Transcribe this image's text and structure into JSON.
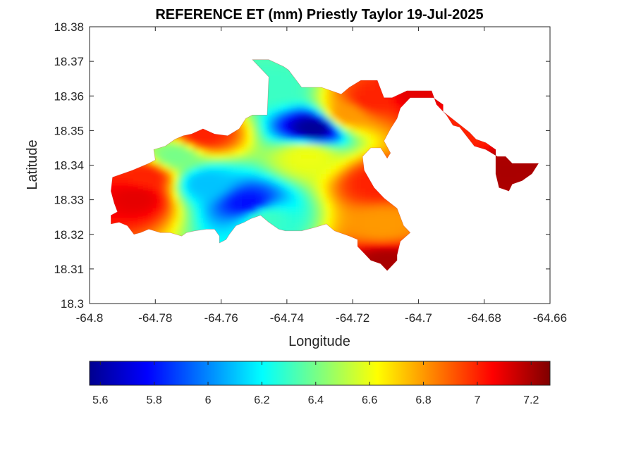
{
  "chart_data": {
    "type": "heatmap",
    "title": "REFERENCE ET (mm) Priestly Taylor 19-Jul-2025",
    "xlabel": "Longitude",
    "ylabel": "Latitude",
    "xlim": [
      -64.8,
      -64.66
    ],
    "ylim": [
      18.3,
      18.38
    ],
    "x_ticks": [
      -64.8,
      -64.78,
      -64.76,
      -64.74,
      -64.72,
      -64.7,
      -64.68,
      -64.66
    ],
    "x_tick_labels": [
      "-64.8",
      "-64.78",
      "-64.76",
      "-64.74",
      "-64.72",
      "-64.7",
      "-64.68",
      "-64.66"
    ],
    "y_ticks": [
      18.3,
      18.31,
      18.32,
      18.33,
      18.34,
      18.35,
      18.36,
      18.37,
      18.38
    ],
    "y_tick_labels": [
      "18.3",
      "18.31",
      "18.32",
      "18.33",
      "18.34",
      "18.35",
      "18.36",
      "18.37",
      "18.38"
    ],
    "grid": false,
    "colormap": "jet",
    "colorbar": {
      "orientation": "horizontal",
      "placement": "below",
      "clim": [
        5.56,
        7.27
      ],
      "ticks": [
        5.6,
        5.8,
        6.0,
        6.2,
        6.4,
        6.6,
        6.8,
        7.0,
        7.2
      ],
      "tick_labels": [
        "5.6",
        "5.8",
        "6",
        "6.2",
        "6.4",
        "6.6",
        "6.8",
        "7",
        "7.2"
      ]
    },
    "mask_outline": [
      [
        -64.793,
        18.3365
      ],
      [
        -64.787,
        18.3385
      ],
      [
        -64.782,
        18.3405
      ],
      [
        -64.78,
        18.3415
      ],
      [
        -64.7805,
        18.3445
      ],
      [
        -64.777,
        18.3455
      ],
      [
        -64.774,
        18.3475
      ],
      [
        -64.7715,
        18.3485
      ],
      [
        -64.769,
        18.349
      ],
      [
        -64.7655,
        18.3505
      ],
      [
        -64.762,
        18.349
      ],
      [
        -64.758,
        18.3485
      ],
      [
        -64.7545,
        18.3505
      ],
      [
        -64.7525,
        18.3535
      ],
      [
        -64.7505,
        18.3545
      ],
      [
        -64.746,
        18.3545
      ],
      [
        -64.7455,
        18.3655
      ],
      [
        -64.7495,
        18.3695
      ],
      [
        -64.7505,
        18.3705
      ],
      [
        -64.7455,
        18.3705
      ],
      [
        -64.741,
        18.3685
      ],
      [
        -64.7395,
        18.3675
      ],
      [
        -64.7355,
        18.3625
      ],
      [
        -64.7295,
        18.3625
      ],
      [
        -64.7235,
        18.3605
      ],
      [
        -64.721,
        18.3625
      ],
      [
        -64.7175,
        18.3645
      ],
      [
        -64.7125,
        18.3645
      ],
      [
        -64.7105,
        18.3595
      ],
      [
        -64.708,
        18.3595
      ],
      [
        -64.7035,
        18.3615
      ],
      [
        -64.6995,
        18.3615
      ],
      [
        -64.696,
        18.3615
      ],
      [
        -64.6945,
        18.3575
      ],
      [
        -64.6915,
        18.3545
      ],
      [
        -64.6895,
        18.3515
      ],
      [
        -64.6875,
        18.351
      ],
      [
        -64.683,
        18.3455
      ],
      [
        -64.6795,
        18.3445
      ],
      [
        -64.676,
        18.3425
      ],
      [
        -64.6735,
        18.3425
      ],
      [
        -64.6715,
        18.3405
      ],
      [
        -64.6635,
        18.3405
      ],
      [
        -64.6655,
        18.3375
      ],
      [
        -64.6685,
        18.3355
      ],
      [
        -64.6715,
        18.3345
      ],
      [
        -64.6725,
        18.3325
      ],
      [
        -64.6755,
        18.3335
      ],
      [
        -64.6765,
        18.3375
      ],
      [
        -64.6765,
        18.3445
      ],
      [
        -64.6795,
        18.3465
      ],
      [
        -64.6825,
        18.3475
      ],
      [
        -64.6845,
        18.3495
      ],
      [
        -64.6885,
        18.3525
      ],
      [
        -64.6925,
        18.3555
      ],
      [
        -64.6925,
        18.3575
      ],
      [
        -64.6955,
        18.3595
      ],
      [
        -64.6985,
        18.3595
      ],
      [
        -64.7025,
        18.3595
      ],
      [
        -64.7055,
        18.3565
      ],
      [
        -64.7065,
        18.3535
      ],
      [
        -64.7085,
        18.3505
      ],
      [
        -64.7105,
        18.347
      ],
      [
        -64.7085,
        18.3435
      ],
      [
        -64.7095,
        18.342
      ],
      [
        -64.7115,
        18.345
      ],
      [
        -64.7145,
        18.345
      ],
      [
        -64.717,
        18.3425
      ],
      [
        -64.7165,
        18.3385
      ],
      [
        -64.7135,
        18.3335
      ],
      [
        -64.7105,
        18.3305
      ],
      [
        -64.7065,
        18.3275
      ],
      [
        -64.7045,
        18.3225
      ],
      [
        -64.7025,
        18.3205
      ],
      [
        -64.7055,
        18.318
      ],
      [
        -64.7065,
        18.314
      ],
      [
        -64.7065,
        18.3125
      ],
      [
        -64.7095,
        18.3095
      ],
      [
        -64.7115,
        18.3115
      ],
      [
        -64.7145,
        18.3125
      ],
      [
        -64.7165,
        18.3145
      ],
      [
        -64.7185,
        18.3165
      ],
      [
        -64.7185,
        18.3185
      ],
      [
        -64.721,
        18.3195
      ],
      [
        -64.7255,
        18.321
      ],
      [
        -64.728,
        18.323
      ],
      [
        -64.7315,
        18.322
      ],
      [
        -64.7355,
        18.321
      ],
      [
        -64.7405,
        18.321
      ],
      [
        -64.7425,
        18.3215
      ],
      [
        -64.7455,
        18.3235
      ],
      [
        -64.748,
        18.3255
      ],
      [
        -64.751,
        18.3245
      ],
      [
        -64.753,
        18.3235
      ],
      [
        -64.7555,
        18.3225
      ],
      [
        -64.7575,
        18.32
      ],
      [
        -64.7585,
        18.3185
      ],
      [
        -64.7605,
        18.3175
      ],
      [
        -64.7605,
        18.3195
      ],
      [
        -64.762,
        18.3215
      ],
      [
        -64.7645,
        18.3215
      ],
      [
        -64.768,
        18.321
      ],
      [
        -64.7705,
        18.3205
      ],
      [
        -64.772,
        18.3195
      ],
      [
        -64.7755,
        18.3205
      ],
      [
        -64.7785,
        18.3205
      ],
      [
        -64.782,
        18.3215
      ],
      [
        -64.7845,
        18.3205
      ],
      [
        -64.7865,
        18.32
      ],
      [
        -64.7885,
        18.3225
      ],
      [
        -64.791,
        18.3235
      ],
      [
        -64.7935,
        18.323
      ],
      [
        -64.7935,
        18.3255
      ],
      [
        -64.7915,
        18.3265
      ],
      [
        -64.7925,
        18.329
      ],
      [
        -64.7935,
        18.3325
      ]
    ],
    "field_centers": [
      {
        "lon": -64.7315,
        "lat": 18.3505,
        "value": 5.6
      },
      {
        "lon": -64.7515,
        "lat": 18.3285,
        "value": 5.8
      },
      {
        "lon": -64.7645,
        "lat": 18.3345,
        "value": 6.1
      },
      {
        "lon": -64.7465,
        "lat": 18.3245,
        "value": 6.3
      },
      {
        "lon": -64.7735,
        "lat": 18.3425,
        "value": 6.4
      },
      {
        "lon": -64.7435,
        "lat": 18.3625,
        "value": 6.3
      },
      {
        "lon": -64.7335,
        "lat": 18.3425,
        "value": 6.6
      },
      {
        "lon": -64.7215,
        "lat": 18.3545,
        "value": 6.8
      },
      {
        "lon": -64.7855,
        "lat": 18.3305,
        "value": 7.1
      },
      {
        "lon": -64.7825,
        "lat": 18.3365,
        "value": 7.0
      },
      {
        "lon": -64.7655,
        "lat": 18.3485,
        "value": 7.0
      },
      {
        "lon": -64.7125,
        "lat": 18.3345,
        "value": 7.0
      },
      {
        "lon": -64.7105,
        "lat": 18.3225,
        "value": 6.8
      },
      {
        "lon": -64.7095,
        "lat": 18.3115,
        "value": 7.2
      },
      {
        "lon": -64.7145,
        "lat": 18.3585,
        "value": 7.0
      },
      {
        "lon": -64.7005,
        "lat": 18.3605,
        "value": 7.1
      },
      {
        "lon": -64.6725,
        "lat": 18.3385,
        "value": 7.2
      },
      {
        "lon": -64.6855,
        "lat": 18.3495,
        "value": 7.0
      }
    ]
  }
}
